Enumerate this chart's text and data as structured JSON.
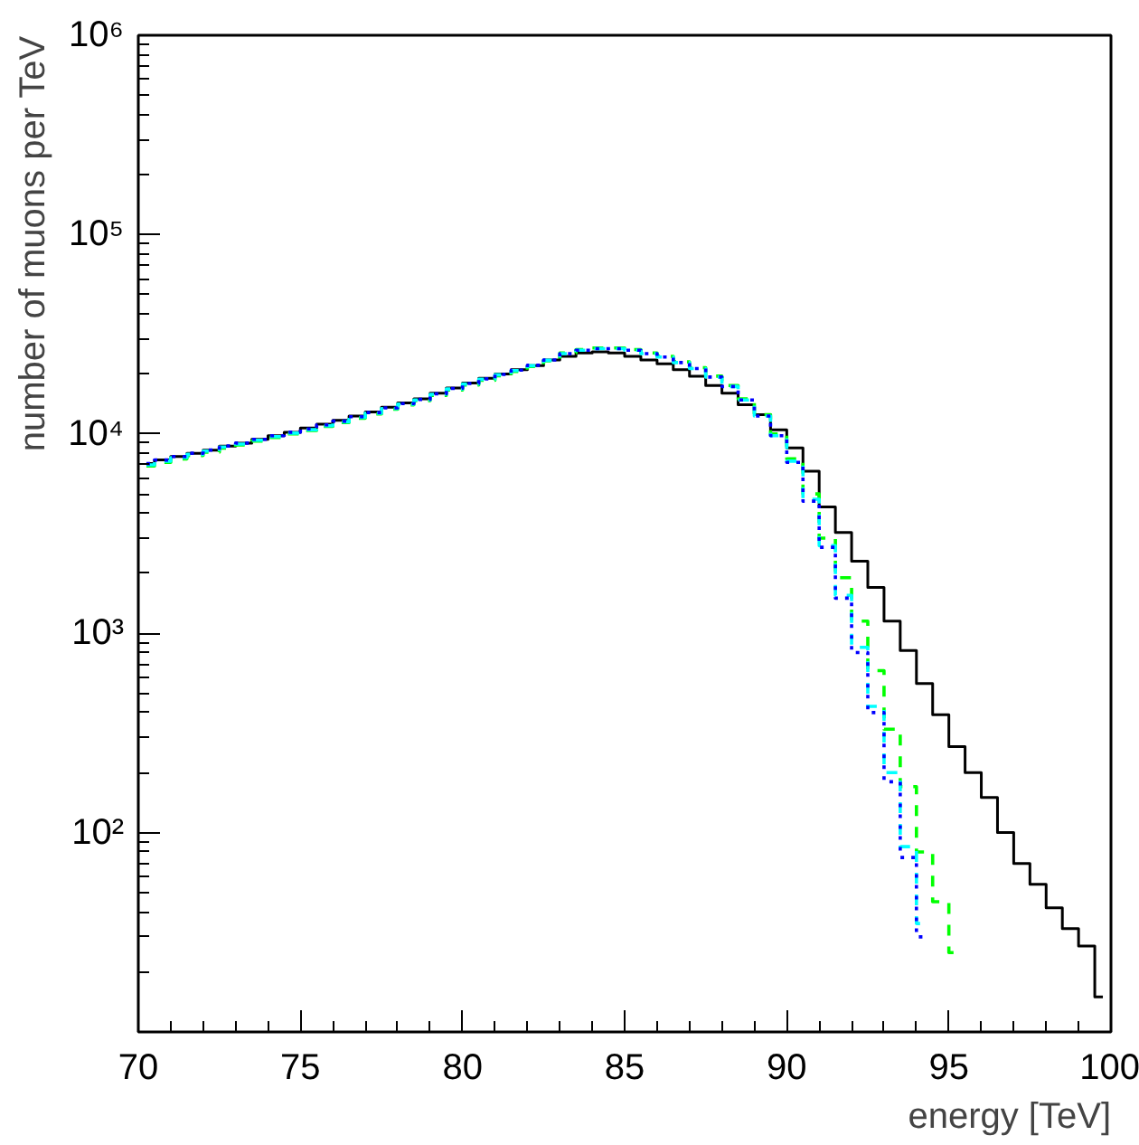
{
  "chart_data": {
    "type": "step",
    "xlabel": "energy [TeV]",
    "ylabel": "number of muons per TeV",
    "log": true,
    "grid": false,
    "xlim": [
      70,
      100
    ],
    "xticks": [
      70,
      75,
      80,
      85,
      90,
      95,
      100
    ],
    "ylim": [
      10,
      1000000
    ],
    "yticks": [
      {
        "value": 100,
        "label": "10²"
      },
      {
        "value": 1000,
        "label": "10³"
      },
      {
        "value": 10000,
        "label": "10⁴"
      },
      {
        "value": 100000,
        "label": "10⁵"
      },
      {
        "value": 1000000,
        "label": "10⁶"
      }
    ],
    "x": [
      70.25,
      70.75,
      71.25,
      71.75,
      72.25,
      72.75,
      73.25,
      73.75,
      74.25,
      74.75,
      75.25,
      75.75,
      76.25,
      76.75,
      77.25,
      77.75,
      78.25,
      78.75,
      79.25,
      79.75,
      80.25,
      80.75,
      81.25,
      81.75,
      82.25,
      82.75,
      83.25,
      83.75,
      84.25,
      84.75,
      85.25,
      85.75,
      86.25,
      86.75,
      87.25,
      87.75,
      88.25,
      88.75,
      89.25,
      89.75,
      90.25,
      90.75,
      91.25,
      91.75,
      92.25,
      92.75,
      93.25,
      93.75,
      94.25,
      94.75,
      95.25,
      95.75,
      96.25,
      96.75,
      97.25,
      97.75,
      98.25,
      98.75,
      99.25,
      99.75
    ],
    "series": [
      {
        "color": "#000000",
        "line_style": "solid",
        "values": [
          7100,
          7400,
          7700,
          8000,
          8300,
          8700,
          9000,
          9400,
          9800,
          10200,
          10700,
          11200,
          11700,
          12300,
          12900,
          13600,
          14300,
          15000,
          16000,
          17000,
          18000,
          19000,
          20000,
          21000,
          22000,
          23500,
          24500,
          25500,
          25800,
          25500,
          24500,
          23500,
          22500,
          21000,
          19500,
          17500,
          16000,
          14000,
          12500,
          10500,
          8500,
          6500,
          4300,
          3200,
          2300,
          1700,
          1150,
          820,
          560,
          390,
          270,
          200,
          150,
          100,
          70,
          55,
          42,
          33,
          27,
          15
        ]
      },
      {
        "color": "#00ff00",
        "line_style": "dashed",
        "values": [
          6900,
          7200,
          7500,
          7800,
          8100,
          8500,
          8800,
          9200,
          9600,
          10000,
          10400,
          10900,
          11400,
          12000,
          12600,
          13300,
          14000,
          14700,
          15600,
          16600,
          17600,
          18600,
          19600,
          20600,
          21800,
          23300,
          25500,
          26500,
          27000,
          27000,
          26500,
          25500,
          24500,
          23000,
          21500,
          19500,
          17500,
          15000,
          12500,
          10000,
          7500,
          5000,
          3000,
          1900,
          1150,
          650,
          330,
          170,
          80,
          45,
          25,
          null,
          null,
          null,
          null,
          null,
          null,
          null,
          null,
          null
        ]
      },
      {
        "color": "#00ffff",
        "line_style": "dashed",
        "values": [
          7000,
          7300,
          7600,
          7900,
          8200,
          8600,
          8900,
          9300,
          9700,
          10100,
          10500,
          11000,
          11500,
          12100,
          12700,
          13400,
          14100,
          14800,
          15800,
          16800,
          17800,
          18800,
          19800,
          20800,
          22000,
          23400,
          25300,
          26300,
          26800,
          26800,
          26300,
          25300,
          24300,
          22800,
          21300,
          19300,
          17300,
          14800,
          12300,
          9800,
          7300,
          4700,
          2750,
          1550,
          850,
          430,
          200,
          85,
          35,
          null,
          null,
          null,
          null,
          null,
          null,
          null,
          null,
          null,
          null,
          null
        ]
      },
      {
        "color": "#0000ff",
        "line_style": "dotted",
        "values": [
          7100,
          7400,
          7700,
          8000,
          8300,
          8700,
          9000,
          9400,
          9800,
          10200,
          10600,
          11100,
          11600,
          12200,
          12800,
          13500,
          14200,
          14900,
          15900,
          16900,
          17900,
          18900,
          19900,
          20900,
          22100,
          23500,
          25300,
          26300,
          26800,
          26800,
          26300,
          25300,
          24300,
          22800,
          21300,
          19300,
          17300,
          14800,
          12300,
          9800,
          7200,
          4600,
          2700,
          1500,
          800,
          400,
          180,
          75,
          30,
          null,
          null,
          null,
          null,
          null,
          null,
          null,
          null,
          null,
          null,
          null
        ]
      }
    ]
  }
}
